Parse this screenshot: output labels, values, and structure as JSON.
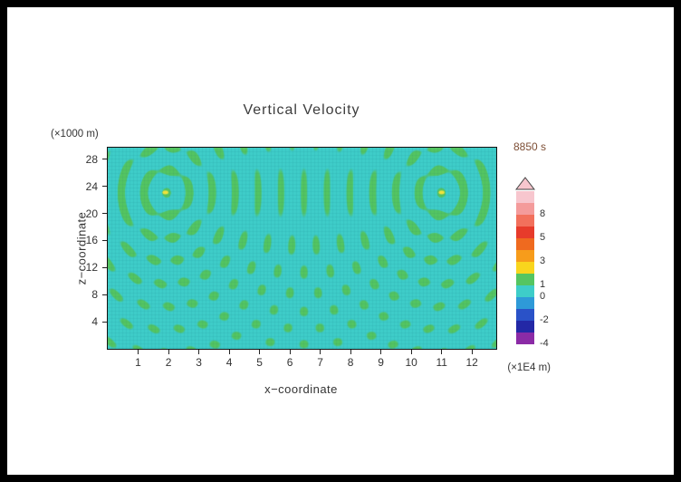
{
  "page": {
    "background": "#ffffff",
    "frame_color": "#000000"
  },
  "chart_data": {
    "type": "heatmap",
    "title": "Vertical Velocity",
    "time_label": "8850 s",
    "x_axis": {
      "label": "x−coordinate",
      "unit_label": "(×1E4 m)",
      "ticks": [
        1,
        2,
        3,
        4,
        5,
        6,
        7,
        8,
        9,
        10,
        11,
        12
      ],
      "range": [
        0,
        12.8
      ]
    },
    "y_axis": {
      "label": "z−coordinate",
      "unit_label": "(×1000 m)",
      "ticks": [
        4,
        8,
        12,
        16,
        20,
        24,
        28
      ],
      "range": [
        0,
        29.7
      ]
    },
    "colorbar": {
      "arrow_color": "#F7C6CE",
      "segments": [
        {
          "color": "#F7C6CE",
          "label": null
        },
        {
          "color": "#F49B9B",
          "label": "8"
        },
        {
          "color": "#F2705C",
          "label": null
        },
        {
          "color": "#E73B2B",
          "label": "5"
        },
        {
          "color": "#EF6A1F",
          "label": null
        },
        {
          "color": "#F79C1B",
          "label": "3"
        },
        {
          "color": "#F9D51D",
          "label": null
        },
        {
          "color": "#55C561",
          "label": "1"
        },
        {
          "color": "#3ECDC9",
          "label": "0"
        },
        {
          "color": "#2E9AD8",
          "label": null
        },
        {
          "color": "#2A52C8",
          "label": "-2"
        },
        {
          "color": "#2328A6",
          "label": null
        },
        {
          "color": "#8B2BA6",
          "label": "-4"
        }
      ]
    },
    "field": {
      "description": "Snapshot of a seismic wavefield: two-source interference pattern, values mostly between 0 (cyan) and 1 (green), small hotspots (~3) at the two source points",
      "background_color": "#3ECDC9",
      "band_color": "#54C561",
      "hotspot_color": "#EFE23C",
      "hotspots": [
        {
          "x": 1.9,
          "z": 23.1
        },
        {
          "x": 11.0,
          "z": 23.1
        }
      ],
      "wavelength_x_units": 0.75
    }
  }
}
